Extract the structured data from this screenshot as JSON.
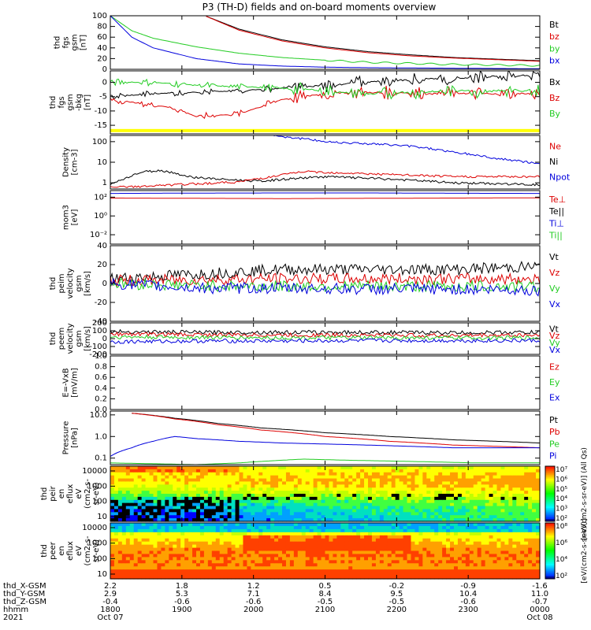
{
  "title": "P3 (TH-D) fields and on-board moments overview",
  "colors": {
    "black": "#000000",
    "red": "#dd0000",
    "green": "#22cc22",
    "blue": "#0000dd",
    "yellow": "#ffff00"
  },
  "chart_data": [
    {
      "type": "line",
      "name": "fgs-gsm",
      "ylabel_lines": [
        "thd",
        "fgs",
        "gsm",
        "[nT]"
      ],
      "ylim": [
        0,
        100
      ],
      "ticks": [
        "100",
        "80",
        "60",
        "40",
        "20",
        "0"
      ],
      "legend": [
        {
          "label": "Bt",
          "color": "black"
        },
        {
          "label": "bz",
          "color": "red"
        },
        {
          "label": "by",
          "color": "green"
        },
        {
          "label": "bx",
          "color": "blue"
        }
      ],
      "series": [
        {
          "name": "Bt",
          "color": "black",
          "x": [
            0.22,
            0.3,
            0.4,
            0.5,
            0.6,
            0.7,
            0.8,
            0.9,
            1.0
          ],
          "y": [
            100,
            75,
            55,
            42,
            33,
            27,
            22,
            19,
            16
          ]
        },
        {
          "name": "bz",
          "color": "red",
          "x": [
            0.22,
            0.3,
            0.4,
            0.5,
            0.6,
            0.7,
            0.8,
            0.9,
            1.0
          ],
          "y": [
            100,
            73,
            53,
            40,
            31,
            25,
            21,
            18,
            15
          ]
        },
        {
          "name": "by",
          "color": "green",
          "x": [
            0,
            0.05,
            0.1,
            0.2,
            0.3,
            0.4,
            0.5,
            0.6,
            0.7,
            0.8,
            0.9,
            1.0
          ],
          "y": [
            100,
            72,
            58,
            42,
            30,
            22,
            17,
            13,
            11,
            9,
            8,
            7
          ]
        },
        {
          "name": "bx",
          "color": "blue",
          "x": [
            0,
            0.05,
            0.1,
            0.2,
            0.3,
            0.4,
            0.5,
            0.6,
            0.8,
            1.0
          ],
          "y": [
            100,
            60,
            40,
            20,
            10,
            6,
            4,
            3,
            2,
            1
          ]
        }
      ]
    },
    {
      "type": "line",
      "name": "fgs-gsm-detrended",
      "ylabel_lines": [
        "thd",
        "fgs",
        "gsm",
        "-bkg",
        "[nT]"
      ],
      "ylim": [
        -18,
        4
      ],
      "ticks": [
        "0",
        "-5",
        "-10",
        "-15"
      ],
      "tickvals": [
        0,
        -5,
        -10,
        -15
      ],
      "legend": [
        {
          "label": "Bx",
          "color": "black"
        },
        {
          "label": "Bz",
          "color": "red"
        },
        {
          "label": "By",
          "color": "green"
        }
      ],
      "series": [
        {
          "name": "Bx",
          "color": "black",
          "x": [
            0,
            0.1,
            0.2,
            0.3,
            0.4,
            0.5,
            0.6,
            0.7,
            0.8,
            0.9,
            1.0
          ],
          "y": [
            -5,
            -4,
            -3.5,
            -3,
            -2,
            -1,
            0,
            1,
            1.5,
            2,
            2.5
          ]
        },
        {
          "name": "Bz",
          "color": "red",
          "x": [
            0,
            0.1,
            0.15,
            0.2,
            0.3,
            0.4,
            0.5,
            0.6,
            0.8,
            1.0
          ],
          "y": [
            -6,
            -8,
            -9,
            -12,
            -11,
            -6,
            -4,
            -3.5,
            -4,
            -4
          ]
        },
        {
          "name": "By",
          "color": "green",
          "x": [
            0,
            0.1,
            0.2,
            0.3,
            0.4,
            0.5,
            0.6,
            0.8,
            1.0
          ],
          "y": [
            0,
            0,
            -1,
            -1.5,
            -2,
            -3,
            -4,
            -3,
            -3
          ]
        }
      ]
    },
    {
      "type": "line",
      "name": "density",
      "log": true,
      "ylabel_lines": [
        "Density",
        "[cm-3]"
      ],
      "ylim": [
        0.5,
        200
      ],
      "ticks": [
        "100",
        "10",
        "1"
      ],
      "tickvals": [
        100,
        10,
        1
      ],
      "legend": [
        {
          "label": "Ne",
          "color": "red"
        },
        {
          "label": "Ni",
          "color": "black"
        },
        {
          "label": "Npot",
          "color": "blue"
        }
      ],
      "series": [
        {
          "name": "Ni",
          "color": "black",
          "x": [
            0,
            0.03,
            0.08,
            0.12,
            0.18,
            0.25,
            0.35,
            0.5,
            0.65,
            0.8,
            1.0
          ],
          "y": [
            0.8,
            1.5,
            3.5,
            4,
            2,
            1.5,
            1.2,
            2,
            1.5,
            1,
            0.8
          ]
        },
        {
          "name": "Ne",
          "color": "red",
          "x": [
            0,
            0.1,
            0.2,
            0.3,
            0.38,
            0.45,
            0.55,
            0.65,
            0.8,
            1.0
          ],
          "y": [
            0.6,
            0.7,
            0.9,
            1.1,
            2,
            3.5,
            3,
            2.5,
            2,
            2
          ]
        },
        {
          "name": "Npot",
          "color": "blue",
          "x": [
            0.38,
            0.42,
            0.5,
            0.6,
            0.7,
            0.8,
            0.9,
            1.0
          ],
          "y": [
            200,
            160,
            100,
            80,
            60,
            30,
            15,
            8
          ]
        }
      ]
    },
    {
      "type": "line",
      "name": "temperature",
      "log": true,
      "ylabel_lines": [
        "mom3",
        "[eV]"
      ],
      "ylim": [
        0.001,
        500
      ],
      "ticks": [
        "10²",
        "10⁰",
        "10⁻²"
      ],
      "tickvals": [
        100,
        1,
        0.01
      ],
      "legend": [
        {
          "label": "Te⊥",
          "color": "red"
        },
        {
          "label": "Te||",
          "color": "black"
        },
        {
          "label": "Ti⊥",
          "color": "blue"
        },
        {
          "label": "Ti||",
          "color": "green"
        }
      ],
      "series": [
        {
          "name": "Ti",
          "color": "blue",
          "x": [
            0,
            0.2,
            0.4,
            0.6,
            0.8,
            1.0
          ],
          "y": [
            250,
            270,
            280,
            280,
            260,
            250
          ]
        },
        {
          "name": "Te",
          "color": "red",
          "x": [
            0,
            0.2,
            0.4,
            0.6,
            0.8,
            1.0
          ],
          "y": [
            80,
            75,
            70,
            75,
            80,
            85
          ]
        }
      ]
    },
    {
      "type": "line",
      "name": "peim-velocity",
      "ylabel_lines": [
        "thd",
        "peim",
        "velocity",
        "gsm",
        "[km/s]"
      ],
      "ylim": [
        -40,
        40
      ],
      "ticks": [
        "40",
        "20",
        "0",
        "-20",
        "-40"
      ],
      "tickvals": [
        40,
        20,
        0,
        -20,
        -40
      ],
      "legend": [
        {
          "label": "Vt",
          "color": "black"
        },
        {
          "label": "Vz",
          "color": "red"
        },
        {
          "label": "Vy",
          "color": "green"
        },
        {
          "label": "Vx",
          "color": "blue"
        }
      ],
      "series": [
        {
          "name": "Vt",
          "color": "black",
          "x": [
            0,
            0.2,
            0.4,
            0.6,
            0.8,
            1.0
          ],
          "y": [
            5,
            10,
            15,
            15,
            15,
            18
          ]
        },
        {
          "name": "Vz",
          "color": "red",
          "x": [
            0,
            0.2,
            0.4,
            0.6,
            0.8,
            1.0
          ],
          "y": [
            3,
            4,
            5,
            5,
            5,
            5
          ]
        },
        {
          "name": "Vy",
          "color": "green",
          "x": [
            0,
            0.2,
            0.4,
            0.6,
            0.8,
            1.0
          ],
          "y": [
            0,
            -2,
            -3,
            -3,
            -3,
            -3
          ]
        },
        {
          "name": "Vx",
          "color": "blue",
          "x": [
            0,
            0.2,
            0.4,
            0.6,
            0.8,
            1.0
          ],
          "y": [
            0,
            -5,
            -5,
            -6,
            -6,
            -7
          ]
        }
      ]
    },
    {
      "type": "line",
      "name": "peem-velocity",
      "ylabel_lines": [
        "thd",
        "peem",
        "velocity",
        "gsm",
        "[km/s]"
      ],
      "ylim": [
        -200,
        200
      ],
      "ticks": [
        "200",
        "100",
        "0",
        "-100",
        "-200"
      ],
      "tickvals": [
        200,
        100,
        0,
        -100,
        -200
      ],
      "legend": [
        {
          "label": "Vt",
          "color": "black"
        },
        {
          "label": "Vz",
          "color": "red"
        },
        {
          "label": "Vy",
          "color": "green"
        },
        {
          "label": "Vx",
          "color": "blue"
        }
      ],
      "series": [
        {
          "name": "Vt",
          "color": "black",
          "x": [
            0,
            0.2,
            0.4,
            0.6,
            0.8,
            1.0
          ],
          "y": [
            90,
            80,
            80,
            80,
            75,
            80
          ]
        },
        {
          "name": "Vz",
          "color": "red",
          "x": [
            0,
            0.2,
            0.4,
            0.6,
            0.8,
            1.0
          ],
          "y": [
            60,
            50,
            45,
            45,
            40,
            45
          ]
        },
        {
          "name": "Vy",
          "color": "green",
          "x": [
            0,
            0.2,
            0.4,
            0.6,
            0.8,
            1.0
          ],
          "y": [
            20,
            15,
            10,
            10,
            10,
            10
          ]
        },
        {
          "name": "Vx",
          "color": "blue",
          "x": [
            0,
            0.2,
            0.4,
            0.6,
            0.8,
            1.0
          ],
          "y": [
            -40,
            -30,
            -30,
            -25,
            -25,
            -25
          ]
        }
      ]
    },
    {
      "type": "line",
      "name": "e-field",
      "ylabel_lines": [
        "E=-VxB",
        "[mV/m]"
      ],
      "ylim": [
        0,
        1
      ],
      "ticks": [
        "1.0",
        "0.8",
        "0.6",
        "0.4",
        "0.2",
        "0.0"
      ],
      "tickvals": [
        1,
        0.8,
        0.6,
        0.4,
        0.2,
        0
      ],
      "legend": [
        {
          "label": "Ez",
          "color": "red"
        },
        {
          "label": "Ey",
          "color": "green"
        },
        {
          "label": "Ex",
          "color": "blue"
        }
      ],
      "series": []
    },
    {
      "type": "line",
      "name": "pressure",
      "log": true,
      "ylabel_lines": [
        "Pressure",
        "[nPa]"
      ],
      "ylim": [
        0.05,
        15
      ],
      "ticks": [
        "10.0",
        "1.0",
        "0.1"
      ],
      "tickvals": [
        10,
        1,
        0.1
      ],
      "legend": [
        {
          "label": "Pt",
          "color": "black"
        },
        {
          "label": "Pb",
          "color": "red"
        },
        {
          "label": "Pe",
          "color": "green"
        },
        {
          "label": "Pi",
          "color": "blue"
        }
      ],
      "series": [
        {
          "name": "Pt",
          "color": "black",
          "x": [
            0.05,
            0.15,
            0.25,
            0.35,
            0.5,
            0.65,
            0.8,
            1.0
          ],
          "y": [
            12,
            7,
            4,
            2.5,
            1.5,
            1.0,
            0.7,
            0.5
          ]
        },
        {
          "name": "Pb",
          "color": "red",
          "x": [
            0.05,
            0.15,
            0.25,
            0.35,
            0.5,
            0.65,
            0.8,
            1.0
          ],
          "y": [
            12,
            6.5,
            3.5,
            2.0,
            1.0,
            0.6,
            0.4,
            0.3
          ]
        },
        {
          "name": "Pi",
          "color": "blue",
          "x": [
            0,
            0.05,
            0.1,
            0.15,
            0.2,
            0.3,
            0.4,
            0.6,
            0.8,
            1.0
          ],
          "y": [
            0.12,
            0.3,
            0.6,
            1.0,
            0.8,
            0.6,
            0.5,
            0.4,
            0.3,
            0.3
          ]
        },
        {
          "name": "Pe",
          "color": "green",
          "x": [
            0,
            0.2,
            0.3,
            0.45,
            0.55,
            0.7,
            0.85,
            1.0
          ],
          "y": [
            0.06,
            0.05,
            0.06,
            0.09,
            0.08,
            0.07,
            0.06,
            0.06
          ]
        }
      ]
    },
    {
      "type": "heatmap",
      "name": "peir-spectrogram",
      "ylabel_lines": [
        "thd",
        "peir",
        "en",
        "eflux",
        "eV",
        "(cm2-s-",
        "sr-eV)"
      ],
      "ticks": [
        "10000",
        "1000",
        "100",
        "10"
      ],
      "colorbar_ticks": [
        "10⁷",
        "10⁶",
        "10⁵",
        "10⁴",
        "10³",
        "10²"
      ],
      "colorbar_label": "[eV/(cm2-s-sr-eV)] (All Qs)"
    },
    {
      "type": "heatmap",
      "name": "peer-spectrogram",
      "ylabel_lines": [
        "thd",
        "peer",
        "en",
        "eflux",
        "eV",
        "(cm2-s-",
        "sr-eV)"
      ],
      "ticks": [
        "10000",
        "1000",
        "100",
        "10"
      ],
      "colorbar_ticks": [
        "10⁸",
        "10⁶",
        "10⁴",
        "10²"
      ],
      "colorbar_label": "[eV/(cm2-s-sr-eV)]"
    }
  ],
  "xaxis": {
    "row_labels": [
      "thd_X-GSM",
      "thd_Y-GSM",
      "thd_Z-GSM",
      "hhmm",
      "2021"
    ],
    "columns": [
      {
        "values": [
          "2.2",
          "2.9",
          "-0.4",
          "1800",
          "Oct 07"
        ]
      },
      {
        "values": [
          "1.8",
          "5.3",
          "-0.6",
          "1900",
          ""
        ]
      },
      {
        "values": [
          "1.2",
          "7.1",
          "-0.6",
          "2000",
          ""
        ]
      },
      {
        "values": [
          "0.5",
          "8.4",
          "-0.5",
          "2100",
          ""
        ]
      },
      {
        "values": [
          "-0.2",
          "9.5",
          "-0.5",
          "2200",
          ""
        ]
      },
      {
        "values": [
          "-0.9",
          "10.4",
          "-0.6",
          "2300",
          ""
        ]
      },
      {
        "values": [
          "-1.6",
          "11.0",
          "-0.7",
          "0000",
          "Oct 08"
        ]
      }
    ]
  }
}
